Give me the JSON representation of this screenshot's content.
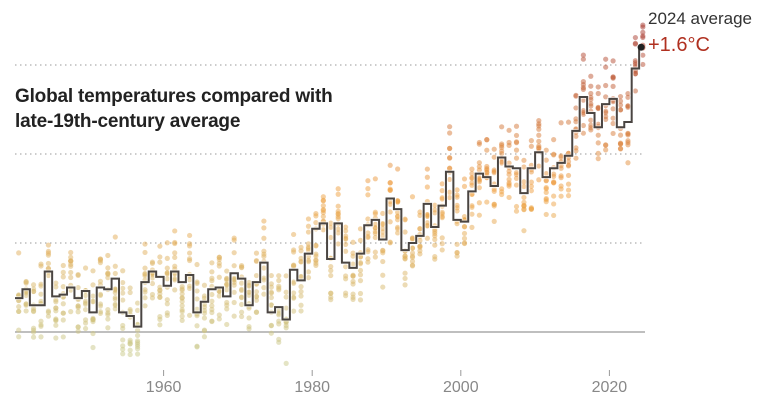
{
  "chart_data": {
    "type": "line",
    "title": "Global temperatures compared with late-19th-century average",
    "xlabel": "",
    "ylabel": "",
    "xlim": [
      1940,
      2025
    ],
    "ylim": [
      -0.2,
      1.75
    ],
    "x_ticks": [
      "1960",
      "1980",
      "2000",
      "2020"
    ],
    "gridlines": [
      0.5,
      1.0,
      1.5
    ],
    "baseline": 0,
    "grid": true,
    "step": true,
    "annotation": {
      "label": "2024 average",
      "value_label": "+1.6°C",
      "year": 2024,
      "value": 1.6
    },
    "colors": {
      "line": "#4a4542",
      "low": "#c9c98a",
      "mid": "#f0a040",
      "high": "#a83a30",
      "annotation": "#b03020"
    },
    "series": [
      {
        "x": [
          1940,
          1941,
          1942,
          1943,
          1944,
          1945,
          1946,
          1947,
          1948,
          1949,
          1950,
          1951,
          1952,
          1953,
          1954,
          1955,
          1956,
          1957,
          1958,
          1959,
          1960,
          1961,
          1962,
          1963,
          1964,
          1965,
          1966,
          1967,
          1968,
          1969,
          1970,
          1971,
          1972,
          1973,
          1974,
          1975,
          1976,
          1977,
          1978,
          1979,
          1980,
          1981,
          1982,
          1983,
          1984,
          1985,
          1986,
          1987,
          1988,
          1989,
          1990,
          1991,
          1992,
          1993,
          1994,
          1995,
          1996,
          1997,
          1998,
          1999,
          2000,
          2001,
          2002,
          2003,
          2004,
          2005,
          2006,
          2007,
          2008,
          2009,
          2010,
          2011,
          2012,
          2013,
          2014,
          2015,
          2016,
          2017,
          2018,
          2019,
          2020,
          2021,
          2022,
          2023,
          2024
        ],
        "values": [
          0.19,
          0.24,
          0.15,
          0.15,
          0.34,
          0.2,
          0.21,
          0.25,
          0.19,
          0.23,
          0.11,
          0.25,
          0.24,
          0.3,
          0.11,
          0.09,
          0.03,
          0.28,
          0.34,
          0.31,
          0.26,
          0.34,
          0.28,
          0.32,
          0.11,
          0.17,
          0.24,
          0.25,
          0.2,
          0.33,
          0.3,
          0.15,
          0.28,
          0.39,
          0.11,
          0.14,
          0.07,
          0.35,
          0.29,
          0.44,
          0.58,
          0.61,
          0.41,
          0.61,
          0.39,
          0.36,
          0.44,
          0.6,
          0.63,
          0.52,
          0.75,
          0.69,
          0.46,
          0.5,
          0.54,
          0.72,
          0.59,
          0.71,
          0.9,
          0.63,
          0.62,
          0.79,
          0.89,
          0.87,
          0.82,
          0.98,
          0.93,
          0.92,
          0.78,
          0.92,
          1.01,
          0.87,
          0.92,
          0.95,
          0.99,
          1.13,
          1.32,
          1.23,
          1.15,
          1.28,
          1.31,
          1.15,
          1.18,
          1.48,
          1.6
        ]
      }
    ]
  }
}
